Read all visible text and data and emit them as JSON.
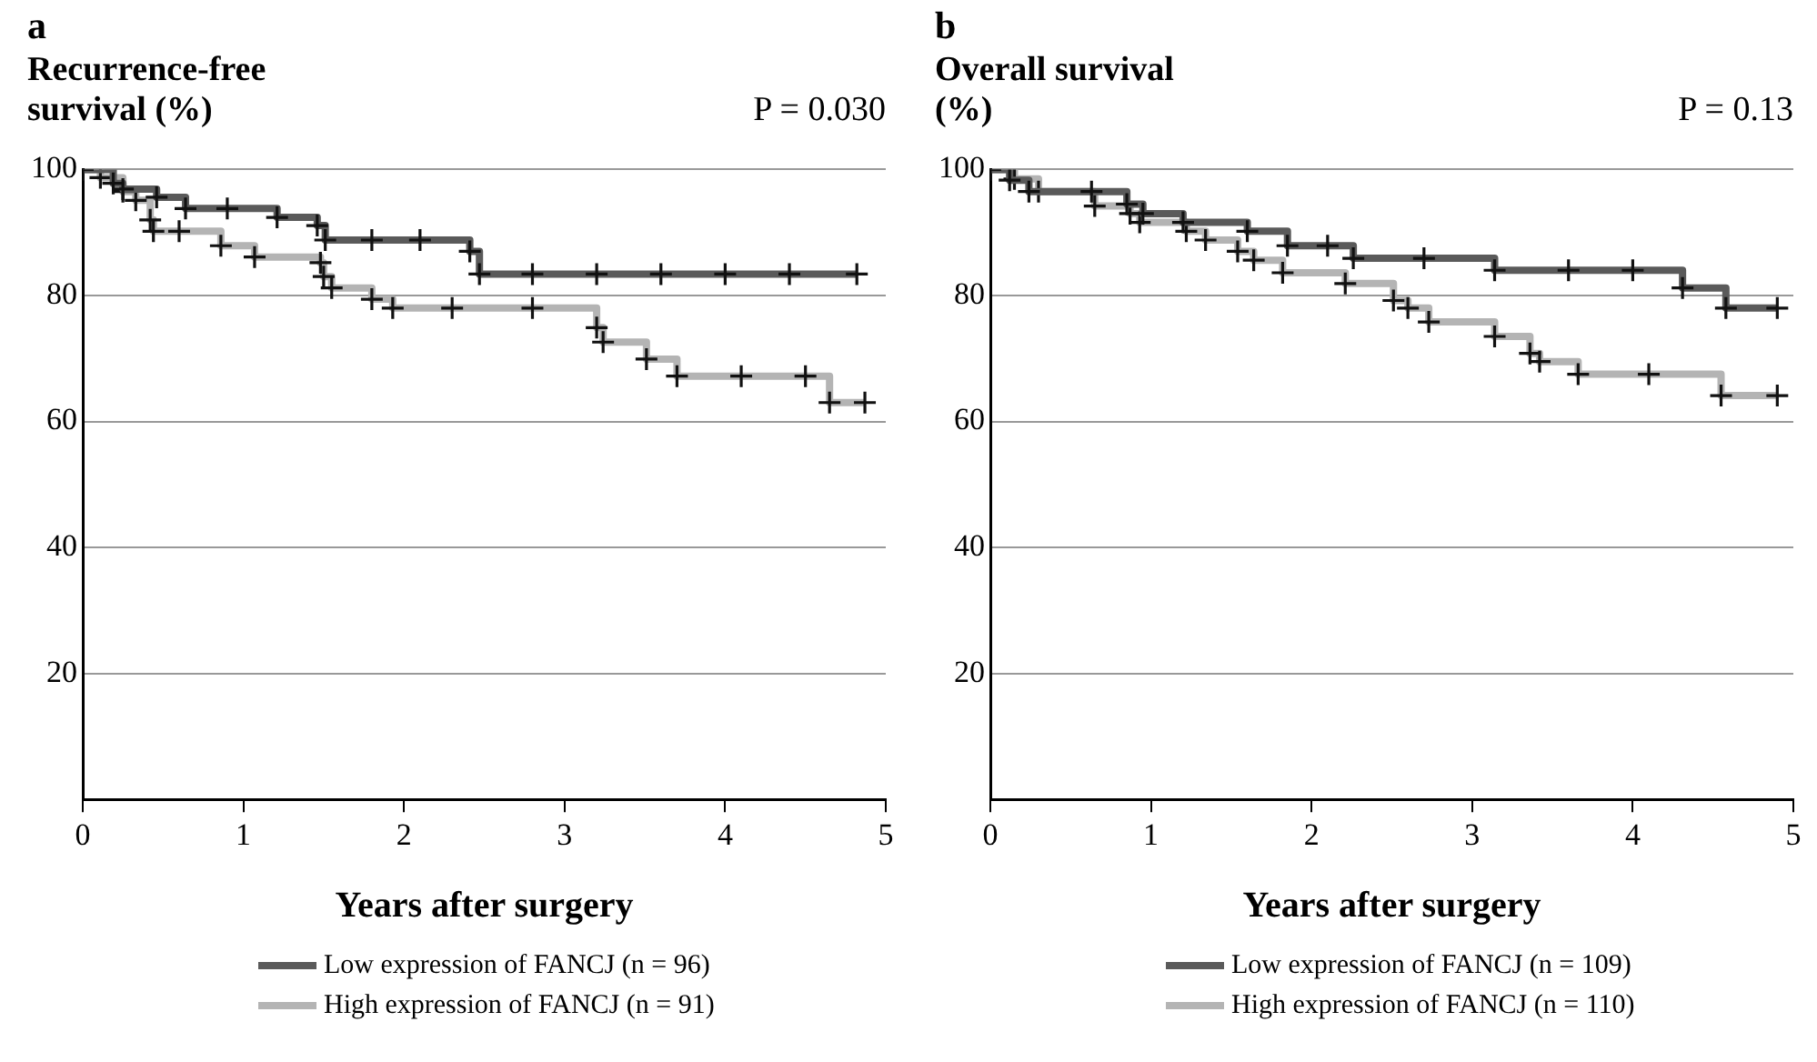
{
  "chart_data": [
    {
      "type": "step",
      "title": "a",
      "ylabel": "Recurrence-free survival (%)",
      "xlabel": "Years after surgery",
      "annotations": [
        "P = 0.030"
      ],
      "xlim": [
        0,
        5
      ],
      "xticks": [
        0,
        1,
        2,
        3,
        4,
        5
      ],
      "ylim": [
        0,
        100
      ],
      "yticks": [
        20,
        40,
        60,
        80,
        100
      ],
      "grid": "y",
      "legend": "bottom",
      "marker": "cross",
      "line_style": "solid",
      "series": [
        {
          "name": "Low expression of FANCJ (n = 96)",
          "color": "#5a5a5a",
          "x": [
            0,
            0.19,
            0.25,
            0.46,
            0.64,
            0.9,
            1.21,
            1.46,
            1.51,
            1.8,
            2.1,
            2.41,
            2.47,
            2.8,
            3.2,
            3.6,
            4.0,
            4.4,
            4.82
          ],
          "values": [
            100,
            97.8,
            96.9,
            95.6,
            93.8,
            93.8,
            92.4,
            91.1,
            88.8,
            88.8,
            88.8,
            87.0,
            83.4,
            83.4,
            83.4,
            83.4,
            83.4,
            83.4,
            83.4
          ]
        },
        {
          "name": "High expression of FANCJ (n = 91)",
          "color": "#b4b4b4",
          "x": [
            0,
            0.11,
            0.25,
            0.33,
            0.42,
            0.44,
            0.6,
            0.86,
            1.07,
            1.48,
            1.5,
            1.55,
            1.8,
            1.93,
            2.3,
            2.8,
            3.2,
            3.24,
            3.51,
            3.7,
            4.1,
            4.5,
            4.65,
            4.87
          ],
          "values": [
            100,
            98.7,
            96.5,
            95.1,
            92.0,
            90.2,
            90.2,
            87.9,
            86.1,
            85.2,
            83.0,
            81.2,
            79.4,
            78.0,
            78.0,
            78.0,
            74.9,
            72.6,
            69.9,
            67.2,
            67.2,
            67.2,
            63.0,
            63.0
          ]
        }
      ]
    },
    {
      "type": "step",
      "title": "b",
      "ylabel": "Overall survival (%)",
      "xlabel": "Years after surgery",
      "annotations": [
        "P = 0.13"
      ],
      "xlim": [
        0,
        5
      ],
      "xticks": [
        0,
        1,
        2,
        3,
        4,
        5
      ],
      "ylim": [
        0,
        100
      ],
      "yticks": [
        20,
        40,
        60,
        80,
        100
      ],
      "grid": "y",
      "legend": "bottom",
      "marker": "cross",
      "line_style": "solid",
      "series": [
        {
          "name": "Low expression of FANCJ (n = 109)",
          "color": "#5a5a5a",
          "x": [
            0,
            0.12,
            0.24,
            0.63,
            0.85,
            0.95,
            1.2,
            1.6,
            1.85,
            2.1,
            2.26,
            2.7,
            3.14,
            3.6,
            4.0,
            4.31,
            4.58,
            4.9
          ],
          "values": [
            100,
            98.3,
            96.5,
            96.5,
            94.5,
            93.0,
            91.6,
            90.2,
            87.9,
            87.9,
            85.9,
            85.9,
            84.0,
            84.0,
            84.0,
            81.2,
            78.0,
            78.0
          ]
        },
        {
          "name": "High expression of FANCJ (n = 110)",
          "color": "#b4b4b4",
          "x": [
            0,
            0.15,
            0.3,
            0.65,
            0.87,
            0.93,
            1.22,
            1.34,
            1.54,
            1.64,
            1.82,
            2.21,
            2.51,
            2.6,
            2.73,
            3.14,
            3.36,
            3.42,
            3.66,
            4.1,
            4.55,
            4.9
          ],
          "values": [
            100,
            98.5,
            96.5,
            94.2,
            93.0,
            91.6,
            90.2,
            88.8,
            87.0,
            85.6,
            83.6,
            81.9,
            79.2,
            78.0,
            75.8,
            73.5,
            70.8,
            69.5,
            67.5,
            67.5,
            64.1,
            64.1
          ]
        }
      ]
    }
  ]
}
